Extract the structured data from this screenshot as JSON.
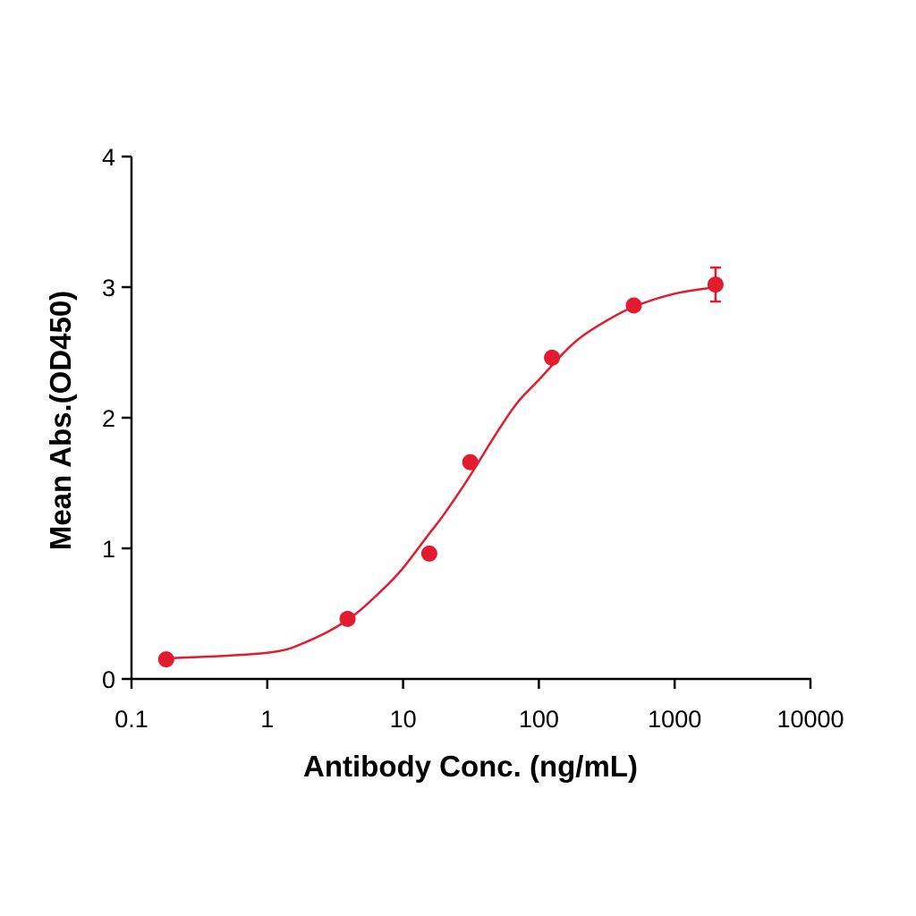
{
  "chart_data": {
    "type": "scatter",
    "x_label": "Antibody Conc. (ng/mL)",
    "y_label": "Mean Abs.(OD450)",
    "log_x": true,
    "xlim": [
      0.1,
      10000
    ],
    "xticks": [
      0.1,
      1,
      10,
      100,
      1000,
      10000
    ],
    "ylim": [
      0,
      4
    ],
    "yticks": [
      0,
      1,
      2,
      3,
      4
    ],
    "series": [
      {
        "type": "scatter",
        "color": "#e31b2f",
        "x": [
          0.18,
          3.9,
          15.6,
          31.25,
          125,
          500,
          2000
        ],
        "values": [
          0.15,
          0.46,
          0.96,
          1.66,
          2.46,
          2.86,
          3.02
        ],
        "errors": [
          null,
          null,
          null,
          null,
          null,
          null,
          0.13
        ]
      },
      {
        "type": "line",
        "color": "#e31b2f",
        "x": [
          0.18,
          1,
          2,
          4,
          7,
          10,
          15,
          20,
          30,
          50,
          70,
          100,
          150,
          200,
          300,
          500,
          1000,
          2000
        ],
        "values": [
          0.157,
          0.2,
          0.29,
          0.46,
          0.68,
          0.85,
          1.09,
          1.26,
          1.53,
          1.9,
          2.12,
          2.29,
          2.49,
          2.61,
          2.73,
          2.85,
          2.95,
          3.0
        ]
      }
    ]
  }
}
